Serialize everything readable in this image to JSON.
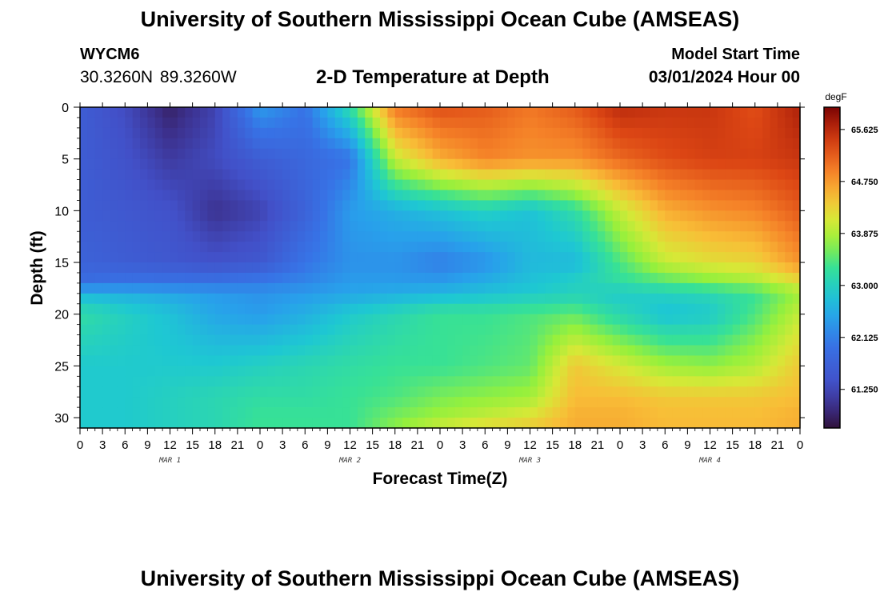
{
  "header": {
    "title": "University of Southern Mississippi Ocean Cube (AMSEAS)",
    "station": "WYCM6",
    "coords": "30.3260N  89.3260W",
    "subtitle": "2-D Temperature at Depth",
    "model_start_label": "Model Start Time",
    "model_start_value": "03/01/2024 Hour 00"
  },
  "footer": {
    "title": "University of Southern Mississippi Ocean Cube (AMSEAS)"
  },
  "chart_data": {
    "type": "heatmap",
    "title": "2-D Temperature at Depth",
    "xlabel": "Forecast Time(Z)",
    "ylabel": "Depth (ft)",
    "x_ticks": [
      "0",
      "3",
      "6",
      "9",
      "12",
      "15",
      "18",
      "21",
      "0",
      "3",
      "6",
      "9",
      "12",
      "15",
      "18",
      "21",
      "0",
      "3",
      "6",
      "9",
      "12",
      "15",
      "18",
      "21",
      "0",
      "3",
      "6",
      "9",
      "12",
      "15",
      "18",
      "21",
      "0"
    ],
    "x_hours": [
      0,
      3,
      6,
      9,
      12,
      15,
      18,
      21,
      24,
      27,
      30,
      33,
      36,
      39,
      42,
      45,
      48,
      51,
      54,
      57,
      60,
      63,
      66,
      69,
      72,
      75,
      78,
      81,
      84,
      87,
      90,
      93,
      96
    ],
    "date_labels": [
      {
        "label": "MAR 1",
        "hour": 12
      },
      {
        "label": "MAR 2",
        "hour": 36
      },
      {
        "label": "MAR 3",
        "hour": 60
      },
      {
        "label": "MAR 4",
        "hour": 84
      }
    ],
    "xlim": [
      0,
      96
    ],
    "y_ticks": [
      0,
      5,
      10,
      15,
      20,
      25,
      30
    ],
    "ylim": [
      0,
      31
    ],
    "colorbar": {
      "unit": "degF",
      "ticks": [
        "65.625",
        "64.750",
        "63.875",
        "63.000",
        "62.125",
        "61.250"
      ],
      "tick_values": [
        65.625,
        64.75,
        63.875,
        63.0,
        62.125,
        61.25
      ],
      "vmin": 60.6,
      "vmax": 66.0
    },
    "grid_times": [
      0,
      6,
      12,
      18,
      24,
      30,
      36,
      42,
      48,
      54,
      60,
      66,
      72,
      78,
      84,
      90,
      96
    ],
    "grid_depths": [
      0,
      5,
      10,
      15,
      17,
      18,
      20,
      25,
      28,
      30,
      31
    ],
    "values": [
      [
        61.6,
        61.3,
        60.8,
        61.2,
        62.4,
        62.0,
        63.2,
        65.0,
        65.3,
        65.2,
        65.0,
        65.2,
        65.6,
        65.5,
        65.5,
        65.3,
        65.7
      ],
      [
        61.6,
        61.4,
        61.1,
        61.3,
        61.6,
        61.8,
        62.0,
        64.0,
        64.6,
        64.9,
        64.8,
        64.8,
        65.1,
        65.3,
        65.4,
        65.4,
        65.5
      ],
      [
        61.6,
        61.5,
        61.4,
        61.0,
        61.2,
        61.7,
        62.4,
        62.6,
        62.8,
        63.0,
        62.8,
        63.2,
        64.0,
        64.6,
        64.8,
        64.9,
        65.2
      ],
      [
        61.7,
        61.6,
        61.5,
        61.4,
        61.5,
        62.0,
        62.3,
        62.3,
        62.1,
        62.3,
        62.7,
        62.7,
        63.4,
        64.0,
        64.2,
        64.3,
        64.8
      ],
      [
        61.9,
        62.0,
        62.0,
        62.0,
        62.1,
        62.2,
        62.4,
        62.4,
        62.4,
        62.6,
        62.8,
        63.0,
        63.2,
        63.4,
        63.6,
        63.8,
        64.2
      ],
      [
        62.7,
        62.6,
        62.5,
        62.4,
        62.3,
        62.4,
        62.5,
        62.6,
        62.7,
        62.8,
        62.9,
        63.0,
        62.9,
        63.0,
        63.1,
        63.3,
        63.8
      ],
      [
        63.2,
        63.0,
        62.8,
        62.5,
        62.4,
        62.6,
        62.9,
        63.1,
        63.3,
        63.3,
        63.4,
        63.5,
        63.1,
        62.8,
        62.9,
        63.4,
        64.0
      ],
      [
        62.9,
        62.9,
        62.9,
        62.9,
        63.0,
        63.1,
        63.2,
        63.3,
        63.3,
        63.4,
        63.5,
        64.4,
        64.1,
        63.8,
        63.7,
        63.9,
        64.4
      ],
      [
        62.9,
        62.9,
        63.0,
        63.1,
        63.2,
        63.2,
        63.3,
        63.4,
        63.6,
        63.7,
        63.8,
        64.5,
        64.5,
        64.4,
        64.4,
        64.4,
        64.5
      ],
      [
        62.9,
        62.9,
        63.0,
        63.1,
        63.3,
        63.3,
        63.3,
        63.6,
        63.8,
        64.0,
        64.2,
        64.6,
        64.6,
        64.5,
        64.5,
        64.5,
        64.6
      ],
      [
        62.9,
        62.9,
        63.0,
        63.1,
        63.3,
        63.3,
        63.3,
        63.7,
        64.1,
        64.3,
        64.4,
        64.6,
        64.6,
        64.5,
        64.5,
        64.5,
        64.6
      ]
    ]
  }
}
